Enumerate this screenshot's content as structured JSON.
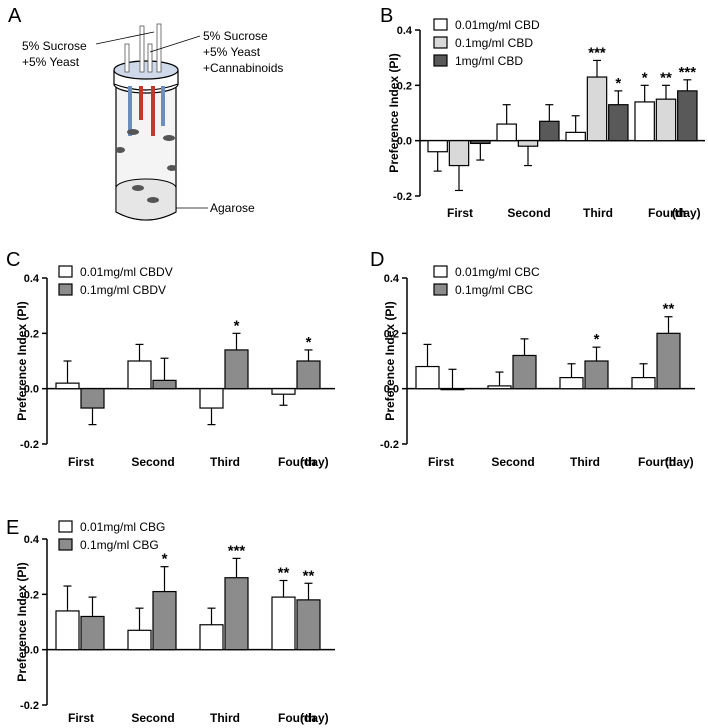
{
  "panels": {
    "a": {
      "letter": "A",
      "label_left_line1": "5% Sucrose",
      "label_left_line2": "+5% Yeast",
      "label_right_line1": "5% Sucrose",
      "label_right_line2": "+5% Yeast",
      "label_right_line3": "+Cannabinoids",
      "label_bottom": "Agarose"
    }
  },
  "chart_data": [
    {
      "id": "B",
      "letter": "B",
      "type": "bar",
      "ylabel": "Preference Index (PI)",
      "xunit": "(day)",
      "ylim": [
        -0.2,
        0.4
      ],
      "yticks": [
        "0.4",
        "0.2",
        "0.0",
        "-0.2"
      ],
      "categories": [
        "First",
        "Second",
        "Third",
        "Fourth"
      ],
      "series": [
        {
          "name": "0.01mg/ml CBD",
          "color": "#ffffff",
          "values": [
            -0.04,
            0.06,
            0.03,
            0.14
          ],
          "errors": [
            0.07,
            0.07,
            0.06,
            0.06
          ],
          "sig": [
            "",
            "",
            "",
            "*"
          ]
        },
        {
          "name": "0.1mg/ml CBD",
          "color": "#d9d9d9",
          "values": [
            -0.09,
            -0.02,
            0.23,
            0.15
          ],
          "errors": [
            0.09,
            0.07,
            0.06,
            0.05
          ],
          "sig": [
            "",
            "",
            "***",
            "**"
          ]
        },
        {
          "name": "1mg/ml CBD",
          "color": "#595959",
          "values": [
            -0.01,
            0.07,
            0.13,
            0.18
          ],
          "errors": [
            0.06,
            0.06,
            0.05,
            0.04
          ],
          "sig": [
            "",
            "",
            "*",
            "***"
          ]
        }
      ]
    },
    {
      "id": "C",
      "letter": "C",
      "type": "bar",
      "ylabel": "Preference Index (PI)",
      "xunit": "(day)",
      "ylim": [
        -0.2,
        0.4
      ],
      "yticks": [
        "0.4",
        "0.2",
        "0.0",
        "-0.2"
      ],
      "categories": [
        "First",
        "Second",
        "Third",
        "Fourth"
      ],
      "series": [
        {
          "name": "0.01mg/ml CBDV",
          "color": "#ffffff",
          "values": [
            0.02,
            0.1,
            -0.07,
            -0.02
          ],
          "errors": [
            0.08,
            0.06,
            0.06,
            0.04
          ],
          "sig": [
            "",
            "",
            "",
            ""
          ]
        },
        {
          "name": "0.1mg/ml CBDV",
          "color": "#8c8c8c",
          "values": [
            -0.07,
            0.03,
            0.14,
            0.1
          ],
          "errors": [
            0.06,
            0.08,
            0.06,
            0.04
          ],
          "sig": [
            "",
            "",
            "*",
            "*"
          ]
        }
      ]
    },
    {
      "id": "D",
      "letter": "D",
      "type": "bar",
      "ylabel": "Preference Index (PI)",
      "xunit": "(day)",
      "ylim": [
        -0.2,
        0.4
      ],
      "yticks": [
        "0.4",
        "0.2",
        "0.0",
        "-0.2"
      ],
      "categories": [
        "First",
        "Second",
        "Third",
        "Fourth"
      ],
      "series": [
        {
          "name": "0.01mg/ml CBC",
          "color": "#ffffff",
          "values": [
            0.08,
            0.01,
            0.04,
            0.04
          ],
          "errors": [
            0.08,
            0.05,
            0.05,
            0.05
          ],
          "sig": [
            "",
            "",
            "",
            ""
          ]
        },
        {
          "name": "0.1mg/ml CBC",
          "color": "#8c8c8c",
          "values": [
            0.0,
            0.12,
            0.1,
            0.2
          ],
          "errors": [
            0.07,
            0.06,
            0.05,
            0.06
          ],
          "sig": [
            "",
            "",
            "*",
            "**"
          ]
        }
      ]
    },
    {
      "id": "E",
      "letter": "E",
      "type": "bar",
      "ylabel": "Preference Index (PI)",
      "xunit": "(day)",
      "ylim": [
        -0.2,
        0.4
      ],
      "yticks": [
        "0.4",
        "0.2",
        "0.0",
        "-0.2"
      ],
      "categories": [
        "First",
        "Second",
        "Third",
        "Fourth"
      ],
      "series": [
        {
          "name": "0.01mg/ml CBG",
          "color": "#ffffff",
          "values": [
            0.14,
            0.07,
            0.09,
            0.19
          ],
          "errors": [
            0.09,
            0.08,
            0.06,
            0.06
          ],
          "sig": [
            "",
            "",
            "",
            "**"
          ]
        },
        {
          "name": "0.1mg/ml CBG",
          "color": "#8c8c8c",
          "values": [
            0.12,
            0.21,
            0.26,
            0.18
          ],
          "errors": [
            0.07,
            0.09,
            0.07,
            0.06
          ],
          "sig": [
            "",
            "*",
            "***",
            "**"
          ]
        }
      ]
    }
  ]
}
